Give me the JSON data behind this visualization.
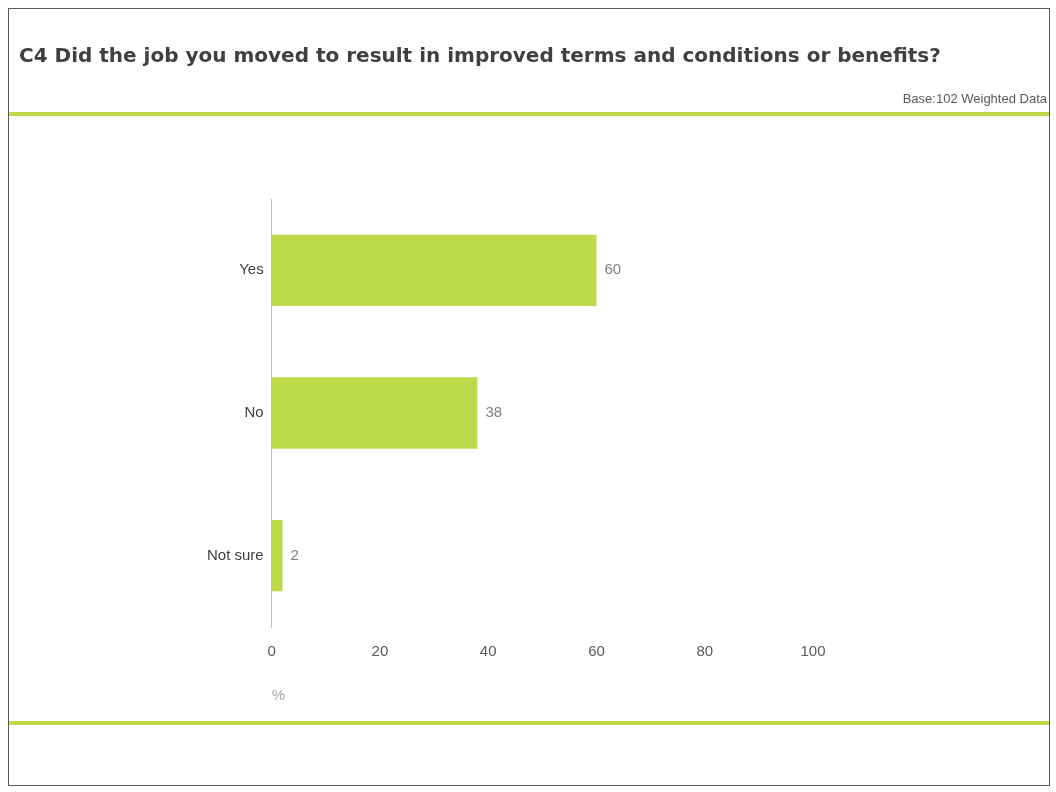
{
  "chart_data": {
    "type": "bar",
    "orientation": "horizontal",
    "title": "C4 Did the job you moved to result in improved terms and conditions or benefits?",
    "annotations": [
      "Base:102 Weighted Data"
    ],
    "categories": [
      "Yes",
      "No",
      "Not sure"
    ],
    "values": [
      60,
      38,
      2
    ],
    "color": "#bdd848",
    "xlim": [
      0,
      100
    ],
    "xticks": [
      0,
      20,
      40,
      60,
      80,
      100
    ],
    "xlabel": "%",
    "grid": false,
    "data_labels": true,
    "legend": false
  }
}
